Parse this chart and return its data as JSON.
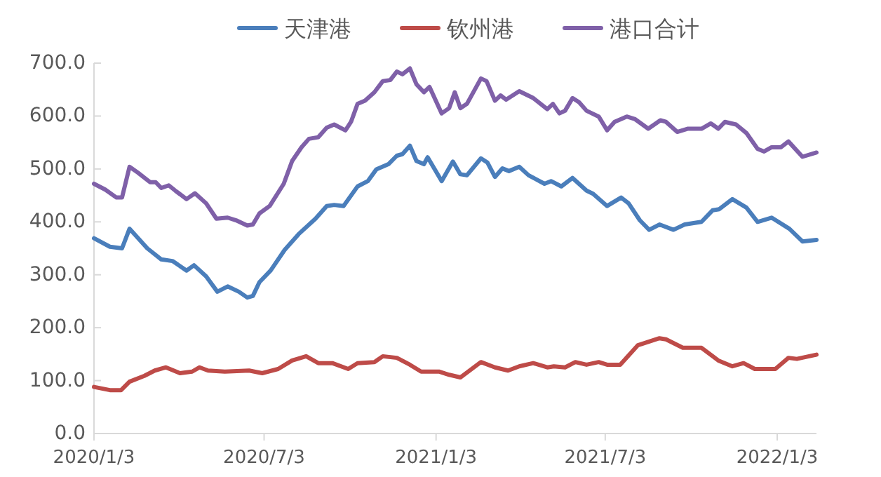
{
  "chart_data": {
    "type": "line",
    "legend": "top",
    "grid": false,
    "marker": "none",
    "line_style": "solid",
    "xlim": [
      "2020-01-03",
      "2022-02-14"
    ],
    "xticks": [
      {
        "value": "2020-01-03",
        "label": "2020/1/3"
      },
      {
        "value": "2020-07-03",
        "label": "2020/7/3"
      },
      {
        "value": "2021-01-03",
        "label": "2021/1/3"
      },
      {
        "value": "2021-07-03",
        "label": "2021/7/3"
      },
      {
        "value": "2022-01-03",
        "label": "2022/1/3"
      }
    ],
    "ylim": [
      0,
      700
    ],
    "yticks": [
      {
        "value": 0,
        "label": "0.0"
      },
      {
        "value": 100,
        "label": "100.0"
      },
      {
        "value": 200,
        "label": "200.0"
      },
      {
        "value": 300,
        "label": "300.0"
      },
      {
        "value": 400,
        "label": "400.0"
      },
      {
        "value": 500,
        "label": "500.0"
      },
      {
        "value": 600,
        "label": "600.0"
      },
      {
        "value": 700,
        "label": "700.0"
      }
    ],
    "series": [
      {
        "name": "天津港",
        "color": "#4a7ebb",
        "x": [
          "2020-01-03",
          "2020-01-20",
          "2020-02-02",
          "2020-02-10",
          "2020-02-29",
          "2020-03-15",
          "2020-03-27",
          "2020-04-11",
          "2020-04-19",
          "2020-05-02",
          "2020-05-14",
          "2020-05-25",
          "2020-06-06",
          "2020-06-15",
          "2020-06-21",
          "2020-06-28",
          "2020-07-10",
          "2020-07-25",
          "2020-08-09",
          "2020-08-27",
          "2020-09-08",
          "2020-09-16",
          "2020-09-26",
          "2020-10-11",
          "2020-10-22",
          "2020-10-31",
          "2020-11-13",
          "2020-11-22",
          "2020-11-28",
          "2020-12-06",
          "2020-12-13",
          "2020-12-21",
          "2020-12-25",
          "2021-01-09",
          "2021-01-21",
          "2021-01-29",
          "2021-02-05",
          "2021-02-20",
          "2021-02-27",
          "2021-03-07",
          "2021-03-15",
          "2021-03-22",
          "2021-04-02",
          "2021-04-12",
          "2021-04-29",
          "2021-05-06",
          "2021-05-17",
          "2021-05-29",
          "2021-06-13",
          "2021-06-20",
          "2021-07-05",
          "2021-07-20",
          "2021-07-28",
          "2021-08-09",
          "2021-08-19",
          "2021-08-30",
          "2021-09-14",
          "2021-09-26",
          "2021-10-14",
          "2021-10-26",
          "2021-11-02",
          "2021-11-16",
          "2021-12-01",
          "2021-12-13",
          "2021-12-28",
          "2022-01-16",
          "2022-01-30",
          "2022-02-14"
        ],
        "values": [
          369,
          353,
          350,
          387,
          350,
          329,
          326,
          308,
          318,
          297,
          268,
          278,
          268,
          257,
          260,
          286,
          308,
          347,
          377,
          406,
          430,
          432,
          430,
          467,
          477,
          499,
          509,
          525,
          528,
          544,
          515,
          509,
          522,
          477,
          514,
          490,
          488,
          520,
          512,
          485,
          501,
          496,
          504,
          488,
          472,
          477,
          467,
          483,
          459,
          453,
          430,
          446,
          435,
          403,
          385,
          395,
          385,
          395,
          400,
          422,
          424,
          443,
          427,
          400,
          408,
          387,
          363,
          366
        ]
      },
      {
        "name": "钦州港",
        "color": "#be4b48",
        "x": [
          "2020-01-03",
          "2020-01-20",
          "2020-02-01",
          "2020-02-10",
          "2020-02-26",
          "2020-03-08",
          "2020-03-20",
          "2020-04-04",
          "2020-04-17",
          "2020-04-25",
          "2020-05-04",
          "2020-05-22",
          "2020-06-17",
          "2020-07-01",
          "2020-07-18",
          "2020-08-02",
          "2020-08-17",
          "2020-08-30",
          "2020-09-14",
          "2020-10-01",
          "2020-10-11",
          "2020-10-29",
          "2020-11-07",
          "2020-11-22",
          "2020-12-06",
          "2020-12-18",
          "2021-01-06",
          "2021-01-17",
          "2021-01-29",
          "2021-02-20",
          "2021-03-07",
          "2021-03-21",
          "2021-04-02",
          "2021-04-17",
          "2021-05-02",
          "2021-05-09",
          "2021-05-21",
          "2021-06-01",
          "2021-06-13",
          "2021-06-26",
          "2021-07-05",
          "2021-07-19",
          "2021-08-07",
          "2021-08-30",
          "2021-09-06",
          "2021-09-24",
          "2021-10-14",
          "2021-11-01",
          "2021-11-16",
          "2021-11-28",
          "2021-12-10",
          "2022-01-01",
          "2022-01-15",
          "2022-01-24",
          "2022-02-14"
        ],
        "values": [
          88,
          82,
          82,
          98,
          109,
          119,
          125,
          114,
          117,
          125,
          119,
          117,
          119,
          114,
          122,
          138,
          146,
          133,
          133,
          122,
          133,
          135,
          146,
          143,
          130,
          117,
          117,
          111,
          106,
          135,
          125,
          119,
          127,
          133,
          125,
          127,
          125,
          135,
          130,
          135,
          130,
          130,
          167,
          180,
          178,
          162,
          162,
          138,
          127,
          133,
          122,
          122,
          143,
          141,
          149
        ]
      },
      {
        "name": "港口合计",
        "color": "#7f60a8",
        "x": [
          "2020-01-03",
          "2020-01-15",
          "2020-01-27",
          "2020-02-02",
          "2020-02-10",
          "2020-02-19",
          "2020-03-03",
          "2020-03-09",
          "2020-03-15",
          "2020-03-23",
          "2020-03-30",
          "2020-04-11",
          "2020-04-20",
          "2020-05-02",
          "2020-05-13",
          "2020-05-25",
          "2020-06-03",
          "2020-06-15",
          "2020-06-21",
          "2020-06-28",
          "2020-07-09",
          "2020-07-24",
          "2020-08-02",
          "2020-08-12",
          "2020-08-20",
          "2020-08-30",
          "2020-09-08",
          "2020-09-16",
          "2020-09-28",
          "2020-10-04",
          "2020-10-11",
          "2020-10-19",
          "2020-10-29",
          "2020-11-07",
          "2020-11-15",
          "2020-11-22",
          "2020-11-28",
          "2020-12-06",
          "2020-12-13",
          "2020-12-21",
          "2020-12-27",
          "2021-01-09",
          "2021-01-17",
          "2021-01-23",
          "2021-01-29",
          "2021-02-05",
          "2021-02-20",
          "2021-02-26",
          "2021-03-07",
          "2021-03-13",
          "2021-03-19",
          "2021-04-02",
          "2021-04-17",
          "2021-05-02",
          "2021-05-08",
          "2021-05-15",
          "2021-05-21",
          "2021-05-29",
          "2021-06-05",
          "2021-06-13",
          "2021-06-26",
          "2021-07-05",
          "2021-07-13",
          "2021-07-26",
          "2021-08-04",
          "2021-08-18",
          "2021-08-31",
          "2021-09-06",
          "2021-09-18",
          "2021-09-29",
          "2021-10-14",
          "2021-10-24",
          "2021-11-01",
          "2021-11-08",
          "2021-11-20",
          "2021-12-01",
          "2021-12-13",
          "2021-12-20",
          "2021-12-28",
          "2022-01-07",
          "2022-01-15",
          "2022-01-30",
          "2022-02-14"
        ],
        "values": [
          472,
          461,
          446,
          446,
          504,
          493,
          475,
          475,
          464,
          469,
          459,
          443,
          454,
          435,
          406,
          408,
          403,
          393,
          395,
          416,
          430,
          472,
          515,
          541,
          557,
          560,
          578,
          584,
          573,
          589,
          623,
          629,
          645,
          666,
          668,
          684,
          679,
          690,
          660,
          645,
          655,
          605,
          615,
          645,
          615,
          623,
          671,
          666,
          629,
          639,
          631,
          647,
          634,
          613,
          623,
          605,
          610,
          634,
          626,
          610,
          599,
          573,
          589,
          599,
          594,
          576,
          592,
          589,
          570,
          576,
          576,
          586,
          576,
          589,
          584,
          568,
          538,
          533,
          541,
          541,
          552,
          523,
          531
        ]
      }
    ]
  }
}
